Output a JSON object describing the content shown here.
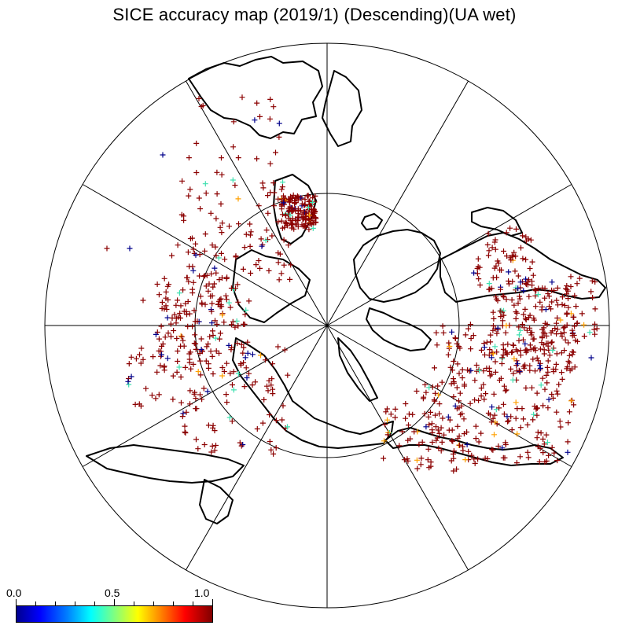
{
  "title": "SICE accuracy map (2019/1) (Descending)(UA wet)",
  "map": {
    "projection": "north-polar-stereographic",
    "grid": "meridians every 30 degrees, latitude circle",
    "marker": "plus",
    "dominant_color": "#8b0000",
    "coastline_color": "#000000"
  },
  "colorbar": {
    "min_label": "0.0",
    "mid_label": "0.5",
    "max_label": "1.0",
    "range": [
      0.0,
      1.0
    ],
    "colormap": "jet"
  }
}
